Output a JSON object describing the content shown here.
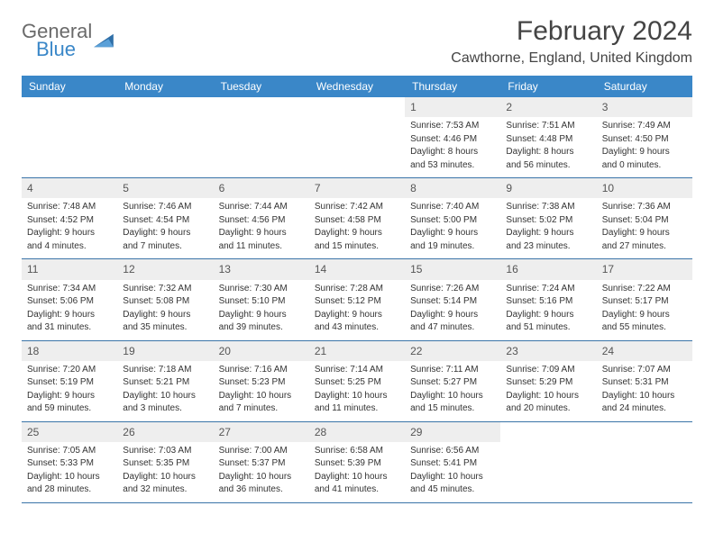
{
  "brand": {
    "line1": "General",
    "line2": "Blue"
  },
  "title": "February 2024",
  "location": "Cawthorne, England, United Kingdom",
  "colors": {
    "header_bg": "#3a87c8",
    "header_text": "#ffffff",
    "daynum_bg": "#eeeeee",
    "row_border": "#3a74a8",
    "text": "#333333",
    "brand_gray": "#6a6a6a",
    "brand_blue": "#3a87c8"
  },
  "weekdays": [
    "Sunday",
    "Monday",
    "Tuesday",
    "Wednesday",
    "Thursday",
    "Friday",
    "Saturday"
  ],
  "weeks": [
    [
      {
        "n": "",
        "empty": true
      },
      {
        "n": "",
        "empty": true
      },
      {
        "n": "",
        "empty": true
      },
      {
        "n": "",
        "empty": true
      },
      {
        "n": "1",
        "sunrise": "Sunrise: 7:53 AM",
        "sunset": "Sunset: 4:46 PM",
        "day1": "Daylight: 8 hours",
        "day2": "and 53 minutes."
      },
      {
        "n": "2",
        "sunrise": "Sunrise: 7:51 AM",
        "sunset": "Sunset: 4:48 PM",
        "day1": "Daylight: 8 hours",
        "day2": "and 56 minutes."
      },
      {
        "n": "3",
        "sunrise": "Sunrise: 7:49 AM",
        "sunset": "Sunset: 4:50 PM",
        "day1": "Daylight: 9 hours",
        "day2": "and 0 minutes."
      }
    ],
    [
      {
        "n": "4",
        "sunrise": "Sunrise: 7:48 AM",
        "sunset": "Sunset: 4:52 PM",
        "day1": "Daylight: 9 hours",
        "day2": "and 4 minutes."
      },
      {
        "n": "5",
        "sunrise": "Sunrise: 7:46 AM",
        "sunset": "Sunset: 4:54 PM",
        "day1": "Daylight: 9 hours",
        "day2": "and 7 minutes."
      },
      {
        "n": "6",
        "sunrise": "Sunrise: 7:44 AM",
        "sunset": "Sunset: 4:56 PM",
        "day1": "Daylight: 9 hours",
        "day2": "and 11 minutes."
      },
      {
        "n": "7",
        "sunrise": "Sunrise: 7:42 AM",
        "sunset": "Sunset: 4:58 PM",
        "day1": "Daylight: 9 hours",
        "day2": "and 15 minutes."
      },
      {
        "n": "8",
        "sunrise": "Sunrise: 7:40 AM",
        "sunset": "Sunset: 5:00 PM",
        "day1": "Daylight: 9 hours",
        "day2": "and 19 minutes."
      },
      {
        "n": "9",
        "sunrise": "Sunrise: 7:38 AM",
        "sunset": "Sunset: 5:02 PM",
        "day1": "Daylight: 9 hours",
        "day2": "and 23 minutes."
      },
      {
        "n": "10",
        "sunrise": "Sunrise: 7:36 AM",
        "sunset": "Sunset: 5:04 PM",
        "day1": "Daylight: 9 hours",
        "day2": "and 27 minutes."
      }
    ],
    [
      {
        "n": "11",
        "sunrise": "Sunrise: 7:34 AM",
        "sunset": "Sunset: 5:06 PM",
        "day1": "Daylight: 9 hours",
        "day2": "and 31 minutes."
      },
      {
        "n": "12",
        "sunrise": "Sunrise: 7:32 AM",
        "sunset": "Sunset: 5:08 PM",
        "day1": "Daylight: 9 hours",
        "day2": "and 35 minutes."
      },
      {
        "n": "13",
        "sunrise": "Sunrise: 7:30 AM",
        "sunset": "Sunset: 5:10 PM",
        "day1": "Daylight: 9 hours",
        "day2": "and 39 minutes."
      },
      {
        "n": "14",
        "sunrise": "Sunrise: 7:28 AM",
        "sunset": "Sunset: 5:12 PM",
        "day1": "Daylight: 9 hours",
        "day2": "and 43 minutes."
      },
      {
        "n": "15",
        "sunrise": "Sunrise: 7:26 AM",
        "sunset": "Sunset: 5:14 PM",
        "day1": "Daylight: 9 hours",
        "day2": "and 47 minutes."
      },
      {
        "n": "16",
        "sunrise": "Sunrise: 7:24 AM",
        "sunset": "Sunset: 5:16 PM",
        "day1": "Daylight: 9 hours",
        "day2": "and 51 minutes."
      },
      {
        "n": "17",
        "sunrise": "Sunrise: 7:22 AM",
        "sunset": "Sunset: 5:17 PM",
        "day1": "Daylight: 9 hours",
        "day2": "and 55 minutes."
      }
    ],
    [
      {
        "n": "18",
        "sunrise": "Sunrise: 7:20 AM",
        "sunset": "Sunset: 5:19 PM",
        "day1": "Daylight: 9 hours",
        "day2": "and 59 minutes."
      },
      {
        "n": "19",
        "sunrise": "Sunrise: 7:18 AM",
        "sunset": "Sunset: 5:21 PM",
        "day1": "Daylight: 10 hours",
        "day2": "and 3 minutes."
      },
      {
        "n": "20",
        "sunrise": "Sunrise: 7:16 AM",
        "sunset": "Sunset: 5:23 PM",
        "day1": "Daylight: 10 hours",
        "day2": "and 7 minutes."
      },
      {
        "n": "21",
        "sunrise": "Sunrise: 7:14 AM",
        "sunset": "Sunset: 5:25 PM",
        "day1": "Daylight: 10 hours",
        "day2": "and 11 minutes."
      },
      {
        "n": "22",
        "sunrise": "Sunrise: 7:11 AM",
        "sunset": "Sunset: 5:27 PM",
        "day1": "Daylight: 10 hours",
        "day2": "and 15 minutes."
      },
      {
        "n": "23",
        "sunrise": "Sunrise: 7:09 AM",
        "sunset": "Sunset: 5:29 PM",
        "day1": "Daylight: 10 hours",
        "day2": "and 20 minutes."
      },
      {
        "n": "24",
        "sunrise": "Sunrise: 7:07 AM",
        "sunset": "Sunset: 5:31 PM",
        "day1": "Daylight: 10 hours",
        "day2": "and 24 minutes."
      }
    ],
    [
      {
        "n": "25",
        "sunrise": "Sunrise: 7:05 AM",
        "sunset": "Sunset: 5:33 PM",
        "day1": "Daylight: 10 hours",
        "day2": "and 28 minutes."
      },
      {
        "n": "26",
        "sunrise": "Sunrise: 7:03 AM",
        "sunset": "Sunset: 5:35 PM",
        "day1": "Daylight: 10 hours",
        "day2": "and 32 minutes."
      },
      {
        "n": "27",
        "sunrise": "Sunrise: 7:00 AM",
        "sunset": "Sunset: 5:37 PM",
        "day1": "Daylight: 10 hours",
        "day2": "and 36 minutes."
      },
      {
        "n": "28",
        "sunrise": "Sunrise: 6:58 AM",
        "sunset": "Sunset: 5:39 PM",
        "day1": "Daylight: 10 hours",
        "day2": "and 41 minutes."
      },
      {
        "n": "29",
        "sunrise": "Sunrise: 6:56 AM",
        "sunset": "Sunset: 5:41 PM",
        "day1": "Daylight: 10 hours",
        "day2": "and 45 minutes."
      },
      {
        "n": "",
        "empty": true
      },
      {
        "n": "",
        "empty": true
      }
    ]
  ]
}
